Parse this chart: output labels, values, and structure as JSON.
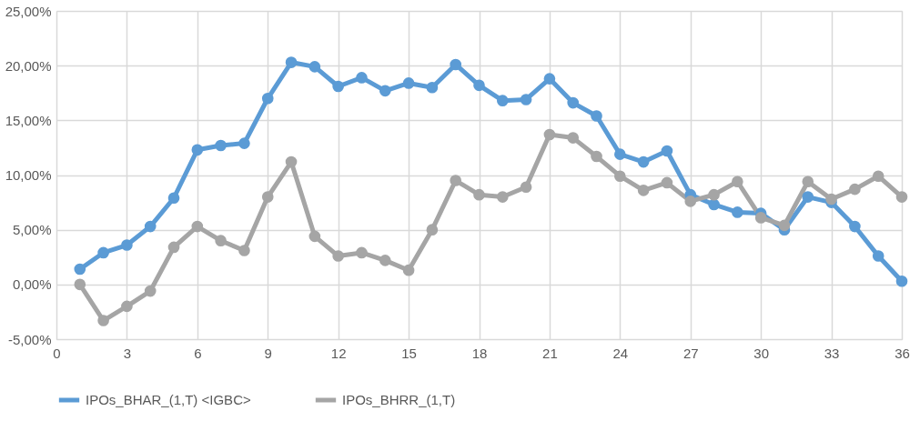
{
  "chart_data": {
    "type": "line",
    "x": [
      1,
      2,
      3,
      4,
      5,
      6,
      7,
      8,
      9,
      10,
      11,
      12,
      13,
      14,
      15,
      16,
      17,
      18,
      19,
      20,
      21,
      22,
      23,
      24,
      25,
      26,
      27,
      28,
      29,
      30,
      31,
      32,
      33,
      34,
      35,
      36
    ],
    "series": [
      {
        "name": "IPOs_BHAR_(1,T) <IGBC>",
        "color": "#5b9bd5",
        "values": [
          1.4,
          2.9,
          3.6,
          5.3,
          7.9,
          12.3,
          12.7,
          12.9,
          17.0,
          20.3,
          19.9,
          18.1,
          18.9,
          17.7,
          18.4,
          18.0,
          20.1,
          18.2,
          16.8,
          16.9,
          18.8,
          16.6,
          15.4,
          11.9,
          11.2,
          12.2,
          8.2,
          7.3,
          6.6,
          6.5,
          5.0,
          8.0,
          7.5,
          5.3,
          2.6,
          0.3
        ]
      },
      {
        "name": "IPOs_BHRR_(1,T)",
        "color": "#a5a5a5",
        "values": [
          0.0,
          -3.3,
          -2.0,
          -0.6,
          3.4,
          5.3,
          4.0,
          3.1,
          8.0,
          11.2,
          4.4,
          2.6,
          2.9,
          2.2,
          1.3,
          5.0,
          9.5,
          8.2,
          8.0,
          8.9,
          13.7,
          13.4,
          11.7,
          9.9,
          8.6,
          9.3,
          7.6,
          8.2,
          9.4,
          6.1,
          5.4,
          9.4,
          7.8,
          8.7,
          9.9,
          8.0
        ]
      }
    ],
    "xlim": [
      0,
      36
    ],
    "xticks": [
      0,
      3,
      6,
      9,
      12,
      15,
      18,
      21,
      24,
      27,
      30,
      33,
      36
    ],
    "ylim": [
      -5,
      25
    ],
    "yticks": [
      {
        "value": -5,
        "label": "-5,00%"
      },
      {
        "value": 0,
        "label": "0,00%"
      },
      {
        "value": 5,
        "label": "5,00%"
      },
      {
        "value": 10,
        "label": "10,00%"
      },
      {
        "value": 15,
        "label": "15,00%"
      },
      {
        "value": 20,
        "label": "20,00%"
      },
      {
        "value": 25,
        "label": "25,00%"
      }
    ],
    "grid": true,
    "legend": "bottom",
    "marker": "circle",
    "line_style": "solid"
  }
}
